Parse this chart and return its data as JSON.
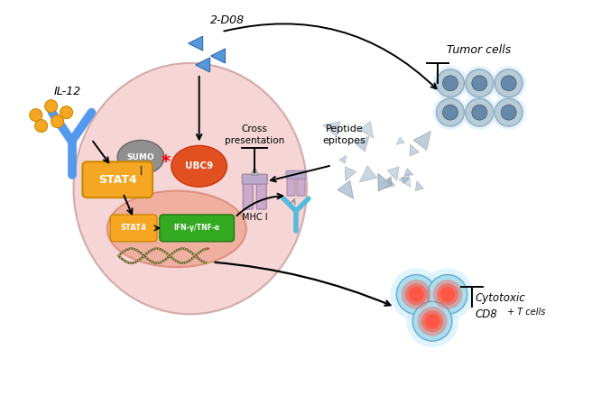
{
  "background_color": "#ffffff",
  "macrophage_color": "#f5d5d5",
  "macrophage_outline": "#d4aaaa",
  "nucleus_color": "#f0b0a0",
  "nucleus_outline": "#e09080",
  "il12_label": "IL-12",
  "d08_label": "2-D08",
  "sumo_label": "SUMO",
  "ubc9_label": "UBC9",
  "stat4_label": "STAT4",
  "stat4_box_color": "#F5A623",
  "ubc9_color": "#E05020",
  "sumo_color": "#909090",
  "mhci_label": "MHC I",
  "cross_pres_label": "Cross\npresentation",
  "peptide_label": "Peptide\nepitopes",
  "tumor_label": "Tumor cells",
  "cytotoxic_line1": "Cytotoxic",
  "cytotoxic_line2": "CD8",
  "cytotoxic_line3": " T cells",
  "ifn_label": "IFN-γ/TNF-α",
  "stat4_small_label": "STAT4",
  "antibody_color": "#5599ee",
  "triangle_color": "#5599dd",
  "cell_color": "#b8ccd8",
  "cell_outline": "#8aacbe",
  "cell_nucleus_color": "#6688aa",
  "tcell_halo": "#aaddff",
  "tcell_center": "#ff5555",
  "mhc_color": "#ccaacc",
  "mhc_outline": "#aa88aa",
  "peptide_fragment_color": "#aabbcc",
  "dna_colors": [
    "#cc3333",
    "#3333cc",
    "#33cc33",
    "#cccc33",
    "#cc8833"
  ],
  "orange_dot_color": "#F5A623"
}
